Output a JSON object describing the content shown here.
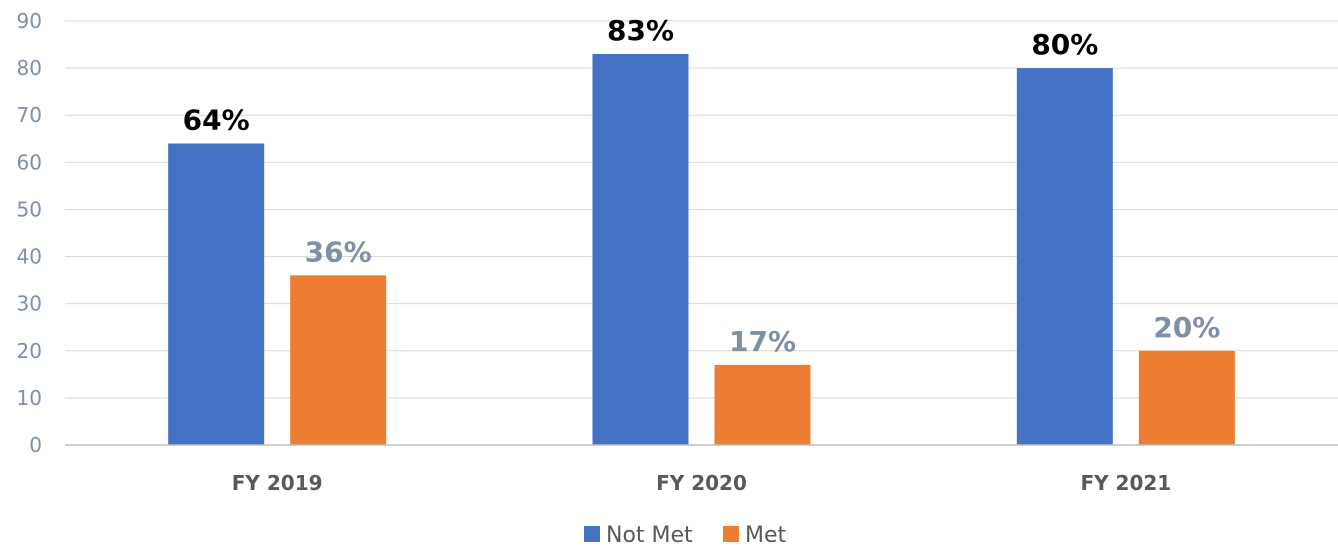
{
  "chart_data": {
    "type": "bar",
    "categories": [
      "FY 2019",
      "FY 2020",
      "FY 2021"
    ],
    "series": [
      {
        "name": "Not Met",
        "values": [
          64,
          83,
          80
        ],
        "labels": [
          "64%",
          "83%",
          "80%"
        ],
        "color": "#4472c4",
        "label_color": "#000000"
      },
      {
        "name": "Met",
        "values": [
          36,
          17,
          20
        ],
        "labels": [
          "36%",
          "17%",
          "20%"
        ],
        "color": "#ed7d31",
        "label_color": "#7f8fa6"
      }
    ],
    "ylim": [
      0,
      90
    ],
    "yticks": [
      0,
      10,
      20,
      30,
      40,
      50,
      60,
      70,
      80,
      90
    ],
    "grid": true,
    "legend": "bottom-center",
    "gridline_color": "#d9d9d9",
    "axis_color": "#bfbfbf"
  }
}
